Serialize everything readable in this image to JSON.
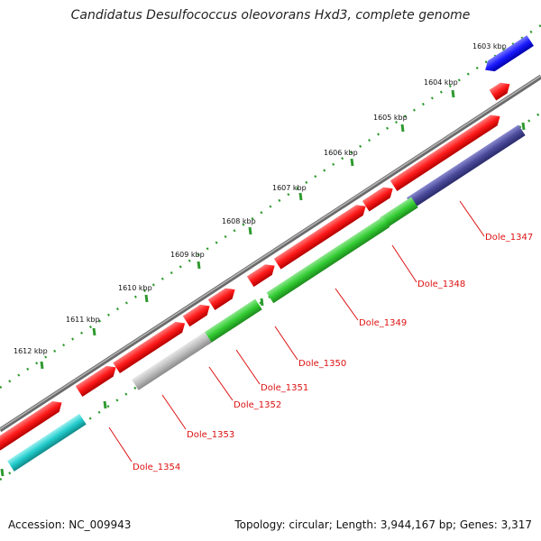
{
  "title": "Candidatus Desulfococcus oleovorans Hxd3, complete genome",
  "footer": {
    "accession": "Accession: NC_009943",
    "summary": "Topology: circular; Length: 3,944,167 bp; Genes: 3,317"
  },
  "colors": {
    "backbone": "#8a8a8a",
    "red": "#ff1a1a",
    "green": "#33cc33",
    "gray": "#bdbdbd",
    "navy": "#4a4a9a",
    "cyan": "#22cccc",
    "blue": "#1a1aff",
    "tick": "#2e9a2e",
    "label": "#dd1111"
  },
  "kbp_labels": [
    "1603 kbp",
    "1604 kbp",
    "1605 kbp",
    "1606 kbp",
    "1607 kbp",
    "1608 kbp",
    "1609 kbp",
    "1610 kbp",
    "1611 kbp",
    "1612 kbp"
  ],
  "gene_labels": [
    "Dole_1347",
    "Dole_1348",
    "Dole_1349",
    "Dole_1350",
    "Dole_1351",
    "Dole_1352",
    "Dole_1353",
    "Dole_1354"
  ]
}
